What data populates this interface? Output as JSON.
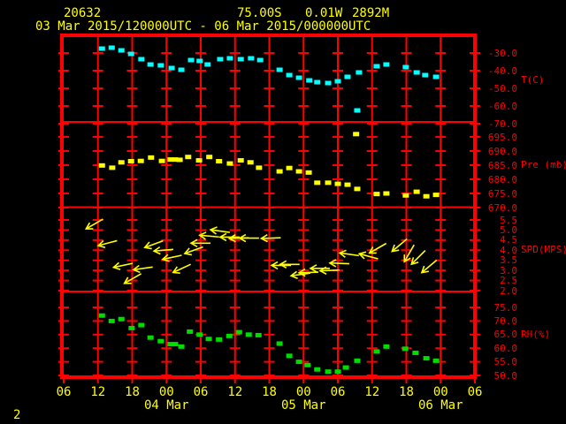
{
  "header": {
    "station_id": "20632",
    "latitude": "75.00S",
    "longitude": "0.01W",
    "elevation": "2892M",
    "time_range": "03 Mar 2015/120000UTC - 06 Mar 2015/000000UTC"
  },
  "page_number": "2",
  "colors": {
    "background": "#000000",
    "frame_and_grid": "#ff0000",
    "axis_text": "#ff0000",
    "header_text": "#ffff00",
    "temperature": "#00ffff",
    "pressure": "#ffff00",
    "wind": "#ffff00",
    "humidity": "#00dc00"
  },
  "x_axis": {
    "start_label": "03 Mar 2015 06UTC",
    "hours_per_tick": 6,
    "total_hours": 72,
    "hour_labels": [
      "06",
      "12",
      "18",
      "00",
      "06",
      "12",
      "18",
      "00",
      "06",
      "12",
      "18",
      "00",
      "06"
    ],
    "date_labels": [
      {
        "text": "04 Mar",
        "tick_index": 3
      },
      {
        "text": "05 Mar",
        "tick_index": 7
      },
      {
        "text": "06 Mar",
        "tick_index": 11
      }
    ]
  },
  "chart_data": [
    {
      "type": "scatter",
      "name": "temperature",
      "axis_label": "T(C)",
      "units": "C",
      "marker": "square",
      "color": "#00ffff",
      "y_ticks": [
        -30,
        -40,
        -50,
        -60,
        -70
      ],
      "x_unit": "hours since 03 Mar 2015 06UTC",
      "points": [
        [
          6.7,
          -27.5
        ],
        [
          8.4,
          -27.0
        ],
        [
          10.1,
          -28.5
        ],
        [
          11.8,
          -30.5
        ],
        [
          13.6,
          -33.5
        ],
        [
          15.2,
          -36.5
        ],
        [
          17.0,
          -37.0
        ],
        [
          18.9,
          -38.5
        ],
        [
          20.6,
          -39.5
        ],
        [
          22.3,
          -34.0
        ],
        [
          23.8,
          -34.5
        ],
        [
          25.2,
          -36.5
        ],
        [
          27.4,
          -33.5
        ],
        [
          29.1,
          -33.0
        ],
        [
          31.0,
          -33.5
        ],
        [
          32.8,
          -33.0
        ],
        [
          34.4,
          -34.0
        ],
        [
          37.8,
          -39.5
        ],
        [
          39.5,
          -42.5
        ],
        [
          41.2,
          -44.0
        ],
        [
          43.0,
          -45.5
        ],
        [
          44.4,
          -46.5
        ],
        [
          46.3,
          -47.0
        ],
        [
          48.0,
          -46.0
        ],
        [
          49.7,
          -43.5
        ],
        [
          51.4,
          -62.5
        ],
        [
          51.7,
          -41.0
        ],
        [
          54.8,
          -37.5
        ],
        [
          56.5,
          -36.5
        ],
        [
          59.9,
          -38.0
        ],
        [
          61.8,
          -41.0
        ],
        [
          63.3,
          -42.5
        ],
        [
          65.2,
          -43.5
        ]
      ]
    },
    {
      "type": "scatter",
      "name": "pressure",
      "axis_label": "Pre (mb)",
      "units": "mb",
      "marker": "square",
      "color": "#ffff00",
      "y_ticks": [
        695,
        690,
        685,
        680,
        675,
        670
      ],
      "x_unit": "hours since 03 Mar 2015 06UTC",
      "points": [
        [
          6.7,
          684.9
        ],
        [
          8.5,
          684.1
        ],
        [
          10.1,
          686.0
        ],
        [
          11.8,
          686.4
        ],
        [
          13.5,
          686.5
        ],
        [
          15.3,
          687.7
        ],
        [
          17.2,
          686.5
        ],
        [
          18.7,
          687.0
        ],
        [
          19.5,
          687.0
        ],
        [
          20.3,
          686.9
        ],
        [
          21.8,
          687.9
        ],
        [
          23.7,
          686.7
        ],
        [
          25.5,
          687.9
        ],
        [
          27.2,
          686.4
        ],
        [
          29.1,
          685.6
        ],
        [
          31.0,
          686.7
        ],
        [
          32.7,
          686.0
        ],
        [
          34.2,
          684.1
        ],
        [
          37.8,
          682.8
        ],
        [
          39.5,
          684.0
        ],
        [
          41.2,
          682.8
        ],
        [
          42.9,
          682.4
        ],
        [
          44.4,
          678.8
        ],
        [
          46.3,
          678.8
        ],
        [
          48.0,
          678.4
        ],
        [
          49.7,
          678.1
        ],
        [
          51.2,
          696.0
        ],
        [
          51.4,
          676.6
        ],
        [
          54.8,
          674.8
        ],
        [
          56.5,
          675.0
        ],
        [
          59.9,
          674.3
        ],
        [
          61.8,
          675.6
        ],
        [
          63.5,
          674.0
        ],
        [
          65.2,
          674.5
        ]
      ]
    },
    {
      "type": "wind_vector",
      "name": "wind-speed",
      "axis_label": "SPD(MPS)",
      "units": "MPS",
      "marker": "arrow",
      "color": "#ffff00",
      "y_ticks": [
        5.5,
        5.0,
        4.5,
        4.0,
        3.5,
        3.0,
        2.5,
        2.0
      ],
      "x_unit": "hours since 03 Mar 2015 06UTC",
      "note": "points are [t, speed, arrow_rotation_deg_clockwise_from_east]",
      "points": [
        [
          5.4,
          5.3,
          150
        ],
        [
          7.7,
          4.35,
          165
        ],
        [
          10.4,
          3.25,
          168
        ],
        [
          12.1,
          2.6,
          150
        ],
        [
          13.9,
          3.1,
          172
        ],
        [
          15.8,
          4.3,
          160
        ],
        [
          17.5,
          4.0,
          175
        ],
        [
          19.0,
          3.65,
          168
        ],
        [
          20.7,
          3.1,
          155
        ],
        [
          22.8,
          4.0,
          160
        ],
        [
          24.0,
          4.35,
          180
        ],
        [
          25.5,
          4.7,
          185
        ],
        [
          27.4,
          4.95,
          188
        ],
        [
          29.1,
          4.65,
          180
        ],
        [
          30.7,
          4.6,
          178
        ],
        [
          32.5,
          4.6,
          180
        ],
        [
          36.3,
          4.6,
          178
        ],
        [
          38.1,
          3.25,
          180
        ],
        [
          39.6,
          3.3,
          180
        ],
        [
          41.5,
          2.8,
          172
        ],
        [
          42.9,
          2.9,
          178
        ],
        [
          44.9,
          3.1,
          180
        ],
        [
          46.6,
          3.0,
          178
        ],
        [
          48.3,
          3.35,
          182
        ],
        [
          50.0,
          3.8,
          188
        ],
        [
          53.4,
          3.7,
          195
        ],
        [
          55.0,
          4.1,
          150
        ],
        [
          58.8,
          4.25,
          140
        ],
        [
          60.5,
          3.85,
          120
        ],
        [
          62.1,
          3.65,
          135
        ],
        [
          64.0,
          3.2,
          140
        ]
      ]
    },
    {
      "type": "scatter",
      "name": "humidity",
      "axis_label": "RH(%)",
      "units": "%",
      "marker": "square",
      "color": "#00dc00",
      "y_ticks": [
        75,
        70,
        65,
        60,
        55,
        50
      ],
      "x_unit": "hours since 03 Mar 2015 06UTC",
      "points": [
        [
          6.7,
          72.0
        ],
        [
          8.4,
          70.0
        ],
        [
          10.1,
          70.7
        ],
        [
          11.9,
          67.4
        ],
        [
          13.6,
          68.5
        ],
        [
          15.2,
          63.9
        ],
        [
          17.0,
          62.6
        ],
        [
          18.7,
          61.5
        ],
        [
          19.5,
          61.5
        ],
        [
          20.6,
          60.6
        ],
        [
          22.1,
          66.1
        ],
        [
          23.8,
          65.0
        ],
        [
          25.4,
          63.4
        ],
        [
          27.2,
          63.2
        ],
        [
          29.0,
          64.5
        ],
        [
          30.7,
          65.9
        ],
        [
          32.4,
          65.0
        ],
        [
          34.1,
          64.8
        ],
        [
          37.8,
          61.7
        ],
        [
          39.5,
          57.2
        ],
        [
          41.2,
          55.0
        ],
        [
          42.7,
          53.8
        ],
        [
          44.4,
          52.2
        ],
        [
          46.3,
          51.4
        ],
        [
          48.0,
          51.4
        ],
        [
          49.4,
          52.9
        ],
        [
          51.4,
          55.4
        ],
        [
          54.8,
          58.8
        ],
        [
          56.5,
          60.6
        ],
        [
          59.8,
          59.8
        ],
        [
          61.6,
          58.3
        ],
        [
          63.5,
          56.3
        ],
        [
          65.2,
          55.4
        ]
      ]
    }
  ]
}
